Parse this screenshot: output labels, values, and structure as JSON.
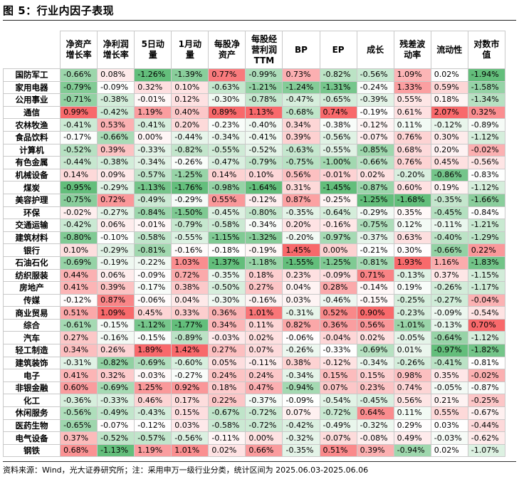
{
  "title": "图 5：行业内因子表现",
  "columns": [
    "净资产\n增长率",
    "净利润\n增长率",
    "5日动\n量",
    "1月动\n量",
    "每股净\n资产",
    "每股经\n营利润\nTTM",
    "BP",
    "EP",
    "成长",
    "残差波\n动率",
    "流动性",
    "对数市\n值"
  ],
  "rows": [
    {
      "name": "国防军工",
      "values": [
        "-0.66%",
        "0.08%",
        "-1.26%",
        "-1.39%",
        "0.77%",
        "-0.99%",
        "0.73%",
        "-0.82%",
        "-0.56%",
        "1.09%",
        "0.02%",
        "-1.94%"
      ]
    },
    {
      "name": "家用电器",
      "values": [
        "-0.79%",
        "-0.09%",
        "0.32%",
        "0.10%",
        "-0.63%",
        "-1.21%",
        "-1.24%",
        "-1.31%",
        "-0.24%",
        "1.33%",
        "0.59%",
        "-1.58%"
      ]
    },
    {
      "name": "公用事业",
      "values": [
        "-0.71%",
        "-0.38%",
        "-0.01%",
        "0.12%",
        "-0.30%",
        "-0.78%",
        "-0.47%",
        "-0.65%",
        "-0.39%",
        "0.55%",
        "0.18%",
        "-1.34%"
      ]
    },
    {
      "name": "通信",
      "values": [
        "0.99%",
        "-0.42%",
        "1.19%",
        "0.40%",
        "0.89%",
        "1.13%",
        "-0.68%",
        "0.74%",
        "-0.19%",
        "0.61%",
        "2.07%",
        "0.32%"
      ]
    },
    {
      "name": "农林牧渔",
      "values": [
        "-0.41%",
        "0.53%",
        "-0.41%",
        "0.20%",
        "-0.23%",
        "-0.40%",
        "0.34%",
        "-0.38%",
        "-0.12%",
        "0.11%",
        "-0.12%",
        "-0.89%"
      ]
    },
    {
      "name": "食品饮料",
      "values": [
        "-0.17%",
        "-0.66%",
        "0.00%",
        "-0.44%",
        "-0.34%",
        "-0.41%",
        "0.39%",
        "-0.56%",
        "-0.07%",
        "0.76%",
        "0.30%",
        "-1.12%"
      ]
    },
    {
      "name": "计算机",
      "values": [
        "-0.52%",
        "0.39%",
        "-0.33%",
        "-0.82%",
        "-0.55%",
        "-0.52%",
        "-0.63%",
        "-0.55%",
        "-0.85%",
        "0.68%",
        "0.20%",
        "-0.02%"
      ]
    },
    {
      "name": "有色金属",
      "values": [
        "-0.44%",
        "-0.38%",
        "-0.34%",
        "-0.26%",
        "-0.47%",
        "-0.79%",
        "-0.75%",
        "-1.00%",
        "-0.66%",
        "0.76%",
        "0.45%",
        "-0.56%"
      ]
    },
    {
      "name": "机械设备",
      "values": [
        "0.14%",
        "0.09%",
        "-0.57%",
        "-1.25%",
        "0.14%",
        "0.10%",
        "0.56%",
        "-0.01%",
        "0.02%",
        "-0.20%",
        "-0.86%",
        "-0.83%"
      ]
    },
    {
      "name": "煤炭",
      "values": [
        "-0.95%",
        "-0.29%",
        "-1.13%",
        "-1.76%",
        "-0.98%",
        "-1.64%",
        "0.31%",
        "-1.45%",
        "-0.87%",
        "0.60%",
        "0.19%",
        "-1.12%"
      ]
    },
    {
      "name": "美容护理",
      "values": [
        "-0.75%",
        "0.72%",
        "-0.49%",
        "-0.29%",
        "0.55%",
        "-0.12%",
        "0.87%",
        "-0.25%",
        "-1.25%",
        "-1.68%",
        "-0.35%",
        "-1.66%"
      ]
    },
    {
      "name": "环保",
      "values": [
        "-0.02%",
        "-0.27%",
        "-0.84%",
        "-1.50%",
        "-0.45%",
        "-0.80%",
        "-0.35%",
        "-0.64%",
        "-0.29%",
        "0.35%",
        "-0.45%",
        "-0.84%"
      ]
    },
    {
      "name": "交通运输",
      "values": [
        "-0.42%",
        "0.06%",
        "-0.01%",
        "-0.79%",
        "-0.58%",
        "-0.34%",
        "0.20%",
        "-0.16%",
        "-0.75%",
        "0.12%",
        "-0.11%",
        "-1.21%"
      ]
    },
    {
      "name": "建筑材料",
      "values": [
        "-0.80%",
        "-0.10%",
        "-0.58%",
        "-0.55%",
        "-1.15%",
        "-1.32%",
        "-0.20%",
        "-0.97%",
        "-0.37%",
        "0.63%",
        "-0.40%",
        "-1.29%"
      ]
    },
    {
      "name": "银行",
      "values": [
        "0.10%",
        "-0.29%",
        "-0.81%",
        "-0.16%",
        "-0.18%",
        "-0.19%",
        "1.45%",
        "0.00%",
        "-0.21%",
        "0.30%",
        "-0.66%",
        "0.22%"
      ]
    },
    {
      "name": "石油石化",
      "values": [
        "-0.69%",
        "-0.19%",
        "-0.22%",
        "1.03%",
        "-1.37%",
        "-1.18%",
        "-1.55%",
        "-1.25%",
        "-0.81%",
        "1.93%",
        "1.16%",
        "-1.83%"
      ]
    },
    {
      "name": "纺织服装",
      "values": [
        "0.44%",
        "0.06%",
        "-0.09%",
        "0.72%",
        "-0.35%",
        "0.18%",
        "0.23%",
        "-0.09%",
        "0.71%",
        "-0.13%",
        "0.37%",
        "-1.15%"
      ]
    },
    {
      "name": "房地产",
      "values": [
        "0.41%",
        "0.39%",
        "-0.17%",
        "0.38%",
        "-0.50%",
        "0.27%",
        "0.04%",
        "0.28%",
        "-0.14%",
        "0.19%",
        "-0.26%",
        "-1.17%"
      ]
    },
    {
      "name": "传媒",
      "values": [
        "-0.12%",
        "0.87%",
        "-0.06%",
        "0.04%",
        "-0.30%",
        "-0.16%",
        "0.03%",
        "-0.46%",
        "-0.15%",
        "-0.25%",
        "-0.27%",
        "-0.04%"
      ]
    },
    {
      "name": "商业贸易",
      "values": [
        "0.51%",
        "1.09%",
        "0.45%",
        "0.33%",
        "0.36%",
        "1.01%",
        "-0.31%",
        "0.52%",
        "0.90%",
        "-0.23%",
        "-0.09%",
        "-0.54%"
      ]
    },
    {
      "name": "综合",
      "values": [
        "-0.61%",
        "-0.15%",
        "-1.12%",
        "-1.77%",
        "0.34%",
        "0.11%",
        "0.82%",
        "0.36%",
        "0.56%",
        "-1.01%",
        "-0.13%",
        "0.70%"
      ]
    },
    {
      "name": "汽车",
      "values": [
        "0.27%",
        "-0.16%",
        "-0.15%",
        "-0.89%",
        "-0.03%",
        "0.02%",
        "-0.06%",
        "-0.04%",
        "0.02%",
        "-0.05%",
        "-0.64%",
        "-1.12%"
      ]
    },
    {
      "name": "轻工制造",
      "values": [
        "0.34%",
        "0.26%",
        "1.89%",
        "1.42%",
        "0.27%",
        "0.07%",
        "-0.26%",
        "-0.33%",
        "-0.69%",
        "0.01%",
        "-0.97%",
        "-1.82%"
      ]
    },
    {
      "name": "建筑装饰",
      "values": [
        "-0.31%",
        "-0.82%",
        "-0.69%",
        "-0.60%",
        "0.05%",
        "-0.11%",
        "0.38%",
        "-0.12%",
        "-0.34%",
        "-0.26%",
        "-0.41%",
        "-0.81%"
      ]
    },
    {
      "name": "电子",
      "values": [
        "0.41%",
        "0.32%",
        "-0.03%",
        "-0.27%",
        "0.24%",
        "0.24%",
        "-0.34%",
        "0.15%",
        "0.15%",
        "0.98%",
        "0.35%",
        "-0.02%"
      ]
    },
    {
      "name": "非银金融",
      "values": [
        "0.60%",
        "-0.69%",
        "1.25%",
        "0.92%",
        "0.18%",
        "0.47%",
        "-0.94%",
        "0.07%",
        "0.23%",
        "0.74%",
        "-0.05%",
        "-0.87%"
      ]
    },
    {
      "name": "化工",
      "values": [
        "-0.36%",
        "-0.33%",
        "0.46%",
        "0.17%",
        "0.22%",
        "-0.37%",
        "-0.09%",
        "-0.54%",
        "-0.45%",
        "0.56%",
        "0.21%",
        "-0.25%"
      ]
    },
    {
      "name": "休闲服务",
      "values": [
        "-0.56%",
        "-0.49%",
        "-0.43%",
        "0.15%",
        "-0.67%",
        "-0.72%",
        "0.07%",
        "-0.72%",
        "0.64%",
        "0.11%",
        "0.55%",
        "-0.67%"
      ]
    },
    {
      "name": "医药生物",
      "values": [
        "-0.65%",
        "-0.07%",
        "-0.12%",
        "0.03%",
        "-0.58%",
        "-0.72%",
        "-0.42%",
        "-0.49%",
        "-0.32%",
        "0.29%",
        "0.03%",
        "-0.44%"
      ]
    },
    {
      "name": "电气设备",
      "values": [
        "0.37%",
        "-0.52%",
        "-0.57%",
        "-0.56%",
        "-0.11%",
        "0.00%",
        "-0.32%",
        "-0.07%",
        "-0.08%",
        "0.49%",
        "-0.03%",
        "-0.62%"
      ]
    },
    {
      "name": "钢铁",
      "values": [
        "0.68%",
        "-1.13%",
        "1.19%",
        "1.01%",
        "0.02%",
        "0.66%",
        "-0.35%",
        "0.51%",
        "0.39%",
        "-0.94%",
        "0.02%",
        "-1.07%"
      ]
    }
  ],
  "colors": {
    "positive": "#f8696b",
    "negative": "#63be7b",
    "neutral": "#ffffff"
  },
  "source_note": "资料来源：Wind，光大证券研究所；注：采用申万一级行业分类，统计区间为 2025.06.03-2025.06.06"
}
